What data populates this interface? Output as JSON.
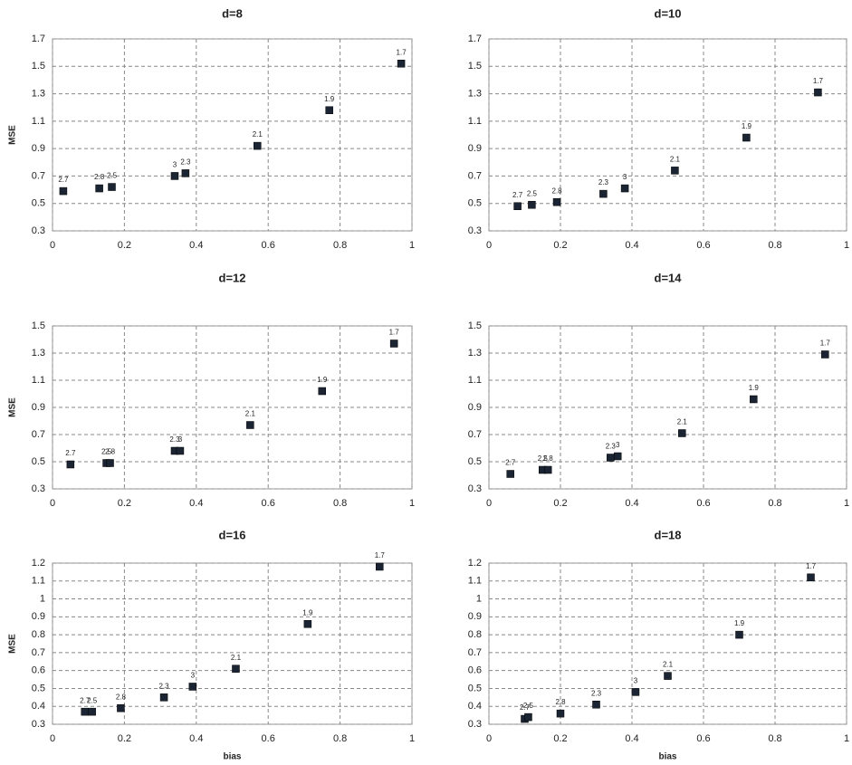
{
  "chart_data": [
    {
      "type": "scatter",
      "title": "d=8",
      "ylabel": "MSE",
      "color": "#1b2433",
      "grid": true,
      "x": [
        0.03,
        0.13,
        0.165,
        0.34,
        0.37,
        0.57,
        0.77,
        0.97
      ],
      "values": [
        0.59,
        0.61,
        0.62,
        0.7,
        0.72,
        0.92,
        1.18,
        1.52
      ],
      "point_labels": [
        "2.7",
        "2.8",
        "2.5",
        "3",
        "2.3",
        "2.1",
        "1.9",
        "1.7"
      ],
      "xlim": [
        0,
        1
      ],
      "xticks": [
        0,
        0.2,
        0.4,
        0.6,
        0.8,
        1
      ],
      "ylim": [
        0.3,
        1.7
      ],
      "yticks": [
        0.3,
        0.5,
        0.7,
        0.9,
        1.1,
        1.3,
        1.5,
        1.7
      ]
    },
    {
      "type": "scatter",
      "title": "d=10",
      "color": "#1b2433",
      "grid": true,
      "x": [
        0.08,
        0.12,
        0.19,
        0.32,
        0.38,
        0.52,
        0.72,
        0.92
      ],
      "values": [
        0.48,
        0.49,
        0.51,
        0.57,
        0.61,
        0.74,
        0.98,
        1.31
      ],
      "point_labels": [
        "2.7",
        "2.5",
        "2.8",
        "2.3",
        "3",
        "2.1",
        "1.9",
        "1.7"
      ],
      "xlim": [
        0,
        1
      ],
      "xticks": [
        0,
        0.2,
        0.4,
        0.6,
        0.8,
        1
      ],
      "ylim": [
        0.3,
        1.7
      ],
      "yticks": [
        0.3,
        0.5,
        0.7,
        0.9,
        1.1,
        1.3,
        1.5,
        1.7
      ]
    },
    {
      "type": "scatter",
      "title": "d=12",
      "ylabel": "MSE",
      "color": "#1b2433",
      "grid": true,
      "x": [
        0.05,
        0.15,
        0.16,
        0.34,
        0.355,
        0.55,
        0.75,
        0.95
      ],
      "values": [
        0.48,
        0.49,
        0.49,
        0.58,
        0.58,
        0.77,
        1.02,
        1.37
      ],
      "point_labels": [
        "2.7",
        "2.5",
        "2.8",
        "2.3",
        "3",
        "2.1",
        "1.9",
        "1.7"
      ],
      "xlim": [
        0,
        1
      ],
      "xticks": [
        0,
        0.2,
        0.4,
        0.6,
        0.8,
        1
      ],
      "ylim": [
        0.3,
        1.5
      ],
      "yticks": [
        0.3,
        0.5,
        0.7,
        0.9,
        1.1,
        1.3,
        1.5
      ]
    },
    {
      "type": "scatter",
      "title": "d=14",
      "color": "#1b2433",
      "grid": true,
      "x": [
        0.06,
        0.15,
        0.165,
        0.34,
        0.36,
        0.54,
        0.74,
        0.94
      ],
      "values": [
        0.41,
        0.44,
        0.44,
        0.53,
        0.54,
        0.71,
        0.96,
        1.29
      ],
      "point_labels": [
        "2.7",
        "2.5",
        "2.8",
        "2.3",
        "3",
        "2.1",
        "1.9",
        "1.7"
      ],
      "xlim": [
        0,
        1
      ],
      "xticks": [
        0,
        0.2,
        0.4,
        0.6,
        0.8,
        1
      ],
      "ylim": [
        0.3,
        1.5
      ],
      "yticks": [
        0.3,
        0.5,
        0.7,
        0.9,
        1.1,
        1.3,
        1.5
      ]
    },
    {
      "type": "scatter",
      "title": "d=16",
      "xlabel": "bias",
      "ylabel": "MSE",
      "color": "#1b2433",
      "grid": true,
      "x": [
        0.09,
        0.11,
        0.19,
        0.31,
        0.39,
        0.51,
        0.71,
        0.91
      ],
      "values": [
        0.37,
        0.37,
        0.39,
        0.45,
        0.51,
        0.61,
        0.86,
        1.18
      ],
      "point_labels": [
        "2.7",
        "2.5",
        "2.8",
        "2.3",
        "3",
        "2.1",
        "1.9",
        "1.7"
      ],
      "xlim": [
        0,
        1
      ],
      "xticks": [
        0,
        0.2,
        0.4,
        0.6,
        0.8,
        1
      ],
      "ylim": [
        0.3,
        1.2
      ],
      "yticks": [
        0.3,
        0.4,
        0.5,
        0.6,
        0.7,
        0.8,
        0.9,
        1,
        1.1,
        1.2
      ]
    },
    {
      "type": "scatter",
      "title": "d=18",
      "xlabel": "bias",
      "color": "#1b2433",
      "grid": true,
      "x": [
        0.1,
        0.11,
        0.2,
        0.3,
        0.41,
        0.5,
        0.7,
        0.9
      ],
      "values": [
        0.33,
        0.34,
        0.36,
        0.41,
        0.48,
        0.57,
        0.8,
        1.12
      ],
      "point_labels": [
        "2.7",
        "2.5",
        "2.8",
        "2.3",
        "3",
        "2.1",
        "1.9",
        "1.7"
      ],
      "xlim": [
        0,
        1
      ],
      "xticks": [
        0,
        0.2,
        0.4,
        0.6,
        0.8,
        1
      ],
      "ylim": [
        0.3,
        1.2
      ],
      "yticks": [
        0.3,
        0.4,
        0.5,
        0.6,
        0.7,
        0.8,
        0.9,
        1,
        1.1,
        1.2
      ]
    }
  ]
}
